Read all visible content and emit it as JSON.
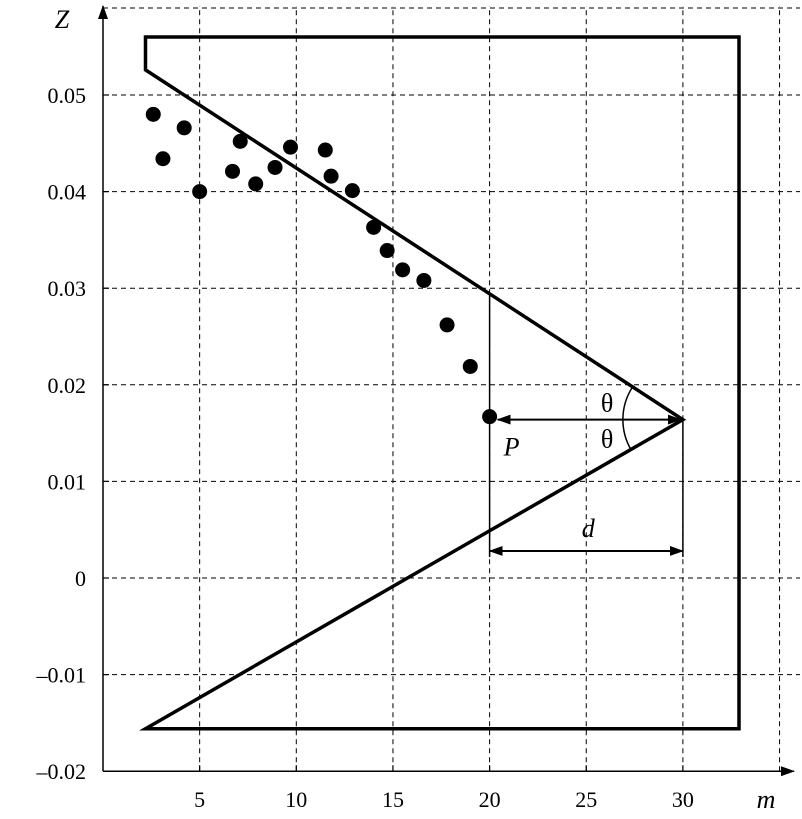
{
  "chart_data": {
    "type": "scatter",
    "title": "",
    "xlabel": "m",
    "ylabel": "Z",
    "xlim": [
      0,
      35
    ],
    "ylim": [
      -0.02,
      0.065
    ],
    "grid": true,
    "x_ticks": [
      5,
      10,
      15,
      20,
      25,
      30
    ],
    "y_ticks": [
      -0.02,
      -0.01,
      0,
      0.01,
      0.02,
      0.03,
      0.04,
      0.05
    ],
    "x_tick_labels": [
      "5",
      "10",
      "15",
      "20",
      "25",
      "30"
    ],
    "y_tick_labels": [
      "–0.02",
      "–0.01",
      "0",
      "0.01",
      "0.02",
      "0.03",
      "0.04",
      "0.05"
    ],
    "points": [
      {
        "x": 2.6,
        "y": 0.048
      },
      {
        "x": 3.1,
        "y": 0.0434
      },
      {
        "x": 4.2,
        "y": 0.0466
      },
      {
        "x": 5.0,
        "y": 0.04
      },
      {
        "x": 6.7,
        "y": 0.0421
      },
      {
        "x": 7.1,
        "y": 0.0452
      },
      {
        "x": 7.9,
        "y": 0.0408
      },
      {
        "x": 8.9,
        "y": 0.0425
      },
      {
        "x": 9.7,
        "y": 0.0446
      },
      {
        "x": 11.5,
        "y": 0.0443
      },
      {
        "x": 11.8,
        "y": 0.0416
      },
      {
        "x": 12.9,
        "y": 0.0401
      },
      {
        "x": 14.0,
        "y": 0.0363
      },
      {
        "x": 14.7,
        "y": 0.0339
      },
      {
        "x": 15.5,
        "y": 0.0319
      },
      {
        "x": 16.6,
        "y": 0.0308
      },
      {
        "x": 17.8,
        "y": 0.0262
      },
      {
        "x": 19.0,
        "y": 0.0219
      },
      {
        "x": 20.0,
        "y": 0.0167
      }
    ],
    "boundary": {
      "polygon": [
        {
          "x": 2.2,
          "y": 0.056
        },
        {
          "x": 32.9,
          "y": 0.056
        },
        {
          "x": 32.9,
          "y": -0.0156
        },
        {
          "x": 2.2,
          "y": -0.0156
        },
        {
          "x": 30.0,
          "y": 0.0164
        },
        {
          "x": 2.2,
          "y": 0.0526
        }
      ]
    },
    "annotations": {
      "vertex": {
        "x": 30.0,
        "y": 0.0164
      },
      "point_P": {
        "x": 20.0,
        "y": 0.0167
      },
      "d_arrow_y": 0.0028,
      "theta_label": "θ",
      "p_label": "P",
      "d_label": "d"
    }
  }
}
